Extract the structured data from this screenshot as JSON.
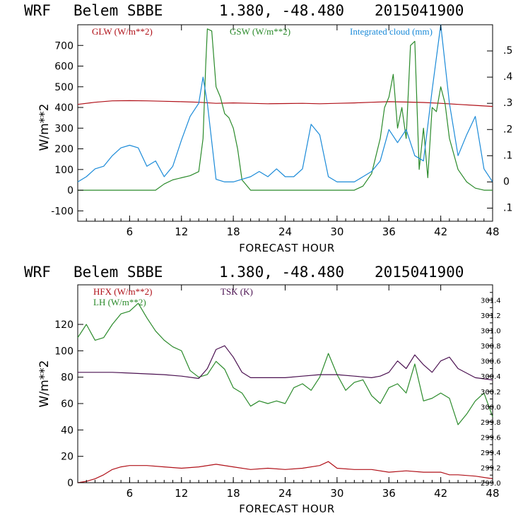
{
  "colors": {
    "frame": "#000000",
    "red": "#b01018",
    "green": "#2a8a2a",
    "blue": "#1a8ad8",
    "purple": "#4a1050"
  },
  "chart_data": [
    {
      "type": "line",
      "header": {
        "model": "WRF",
        "station": "Belem SBBE",
        "coords": "1.380, -48.480",
        "run": "2015041900"
      },
      "xlabel": "FORECAST HOUR",
      "ylabel": "W/m**2",
      "xlim": [
        0,
        48
      ],
      "ylim": [
        -150,
        800
      ],
      "x_ticks": [
        6,
        12,
        18,
        24,
        30,
        36,
        42,
        48
      ],
      "y_ticks": [
        -100,
        0,
        100,
        200,
        300,
        400,
        500,
        600,
        700
      ],
      "y2lim": [
        -0.15,
        0.6
      ],
      "y2_ticks": [
        -0.1,
        0,
        0.1,
        0.2,
        0.3,
        0.4,
        0.5
      ],
      "y2_tick_labels": [
        ".1",
        "0",
        ".1",
        ".2",
        ".3",
        ".4",
        ".5"
      ],
      "series": [
        {
          "name": "GLW (W/m**2)",
          "color": "red",
          "axis": "left",
          "x": [
            0,
            2,
            4,
            6,
            8,
            10,
            12,
            14,
            16,
            18,
            20,
            22,
            24,
            26,
            28,
            30,
            32,
            34,
            36,
            38,
            40,
            42,
            44,
            46,
            48
          ],
          "values": [
            415,
            425,
            432,
            433,
            432,
            430,
            428,
            425,
            420,
            422,
            420,
            418,
            419,
            420,
            418,
            420,
            422,
            425,
            428,
            426,
            424,
            420,
            415,
            410,
            405
          ]
        },
        {
          "name": "GSW (W/m**2)",
          "color": "green",
          "axis": "left",
          "x": [
            0,
            9,
            10,
            11,
            12,
            13,
            14,
            14.5,
            14.8,
            15,
            15.5,
            16,
            16.5,
            17,
            17.5,
            18,
            18.5,
            19,
            20,
            22,
            24,
            26,
            28,
            30,
            32,
            33,
            34,
            35,
            35.5,
            36,
            36.5,
            37,
            37.5,
            38,
            38.5,
            39,
            39.5,
            40,
            40.5,
            41,
            41.5,
            42,
            42.5,
            43,
            44,
            45,
            46,
            47,
            48
          ],
          "values": [
            0,
            0,
            30,
            50,
            60,
            70,
            90,
            250,
            600,
            780,
            770,
            500,
            450,
            370,
            350,
            300,
            200,
            50,
            0,
            0,
            0,
            0,
            0,
            0,
            0,
            20,
            80,
            250,
            400,
            450,
            560,
            300,
            400,
            250,
            700,
            720,
            100,
            300,
            60,
            400,
            380,
            500,
            420,
            250,
            100,
            40,
            10,
            0,
            0
          ]
        },
        {
          "name": "Integrated cloud (mm)",
          "color": "blue",
          "axis": "right",
          "x": [
            0,
            1,
            2,
            3,
            4,
            5,
            6,
            7,
            8,
            9,
            10,
            11,
            12,
            13,
            14,
            14.5,
            15,
            16,
            17,
            18,
            19,
            20,
            21,
            22,
            23,
            24,
            25,
            26,
            27,
            28,
            29,
            30,
            31,
            32,
            33,
            34,
            35,
            36,
            37,
            38,
            39,
            40,
            41,
            42,
            43,
            44,
            45,
            46,
            47,
            48
          ],
          "values": [
            0,
            0.02,
            0.05,
            0.06,
            0.1,
            0.13,
            0.14,
            0.13,
            0.06,
            0.08,
            0.02,
            0.06,
            0.16,
            0.25,
            0.3,
            0.4,
            0.3,
            0.01,
            0,
            0,
            0.01,
            0.02,
            0.04,
            0.02,
            0.05,
            0.02,
            0.02,
            0.05,
            0.22,
            0.18,
            0.02,
            0,
            0,
            0,
            0.02,
            0.04,
            0.08,
            0.2,
            0.15,
            0.2,
            0.1,
            0.08,
            0.35,
            0.6,
            0.3,
            0.1,
            0.18,
            0.25,
            0.05,
            0
          ]
        }
      ]
    },
    {
      "type": "line",
      "header": {
        "model": "WRF",
        "station": "Belem SBBE",
        "coords": "1.380, -48.480",
        "run": "2015041900"
      },
      "xlabel": "FORECAST HOUR",
      "ylabel": "W/m**2",
      "xlim": [
        0,
        48
      ],
      "ylim": [
        0,
        150
      ],
      "x_ticks": [
        6,
        12,
        18,
        24,
        30,
        36,
        42,
        48
      ],
      "y_ticks": [
        0,
        20,
        40,
        60,
        80,
        100,
        120
      ],
      "y2lim": [
        299.0,
        301.6
      ],
      "y2_ticks": [
        299.0,
        299.2,
        299.4,
        299.6,
        299.8,
        300.0,
        300.2,
        300.4,
        300.6,
        300.8,
        301.0,
        301.2,
        301.4
      ],
      "y2_tick_labels": [
        "299.0",
        "299.2",
        "299.4",
        "299.6",
        "299.8",
        "300.0",
        "300.2",
        "300.4",
        "300.6",
        "300.8",
        "301.0",
        "301.2",
        "301.4"
      ],
      "series": [
        {
          "name": "HFX (W/m**2)",
          "color": "red",
          "axis": "left",
          "x": [
            0,
            1,
            2,
            3,
            4,
            5,
            6,
            8,
            10,
            12,
            14,
            16,
            18,
            20,
            22,
            24,
            26,
            28,
            29,
            30,
            32,
            34,
            36,
            38,
            40,
            42,
            43,
            44,
            46,
            48
          ],
          "values": [
            0,
            1,
            3,
            6,
            10,
            12,
            13,
            13,
            12,
            11,
            12,
            14,
            12,
            10,
            11,
            10,
            11,
            13,
            16,
            11,
            10,
            10,
            8,
            9,
            8,
            8,
            6,
            6,
            5,
            3
          ]
        },
        {
          "name": "LH (W/m**2)",
          "color": "green",
          "axis": "left",
          "x": [
            0,
            1,
            2,
            3,
            4,
            5,
            6,
            7,
            8,
            9,
            10,
            11,
            12,
            13,
            14,
            15,
            16,
            17,
            18,
            19,
            20,
            21,
            22,
            23,
            24,
            25,
            26,
            27,
            28,
            29,
            30,
            31,
            32,
            33,
            34,
            35,
            36,
            37,
            38,
            39,
            40,
            41,
            42,
            43,
            44,
            45,
            46,
            47,
            48
          ],
          "values": [
            110,
            120,
            108,
            110,
            120,
            128,
            130,
            136,
            125,
            115,
            108,
            103,
            100,
            85,
            80,
            82,
            92,
            86,
            72,
            68,
            58,
            62,
            60,
            62,
            60,
            72,
            75,
            70,
            80,
            98,
            82,
            70,
            76,
            78,
            66,
            60,
            72,
            75,
            68,
            90,
            62,
            64,
            68,
            64,
            44,
            52,
            62,
            68,
            50
          ]
        },
        {
          "name": "TSK (K)",
          "color": "purple",
          "axis": "right",
          "x": [
            0,
            2,
            4,
            6,
            8,
            10,
            12,
            14,
            15,
            16,
            17,
            18,
            19,
            20,
            22,
            24,
            26,
            28,
            30,
            32,
            34,
            35,
            36,
            37,
            38,
            39,
            40,
            41,
            42,
            43,
            44,
            46,
            48
          ],
          "values": [
            300.45,
            300.45,
            300.45,
            300.44,
            300.43,
            300.42,
            300.4,
            300.37,
            300.5,
            300.75,
            300.8,
            300.65,
            300.45,
            300.38,
            300.38,
            300.38,
            300.4,
            300.42,
            300.42,
            300.4,
            300.38,
            300.4,
            300.45,
            300.6,
            300.5,
            300.68,
            300.55,
            300.45,
            300.6,
            300.65,
            300.5,
            300.38,
            300.35
          ]
        }
      ]
    }
  ]
}
